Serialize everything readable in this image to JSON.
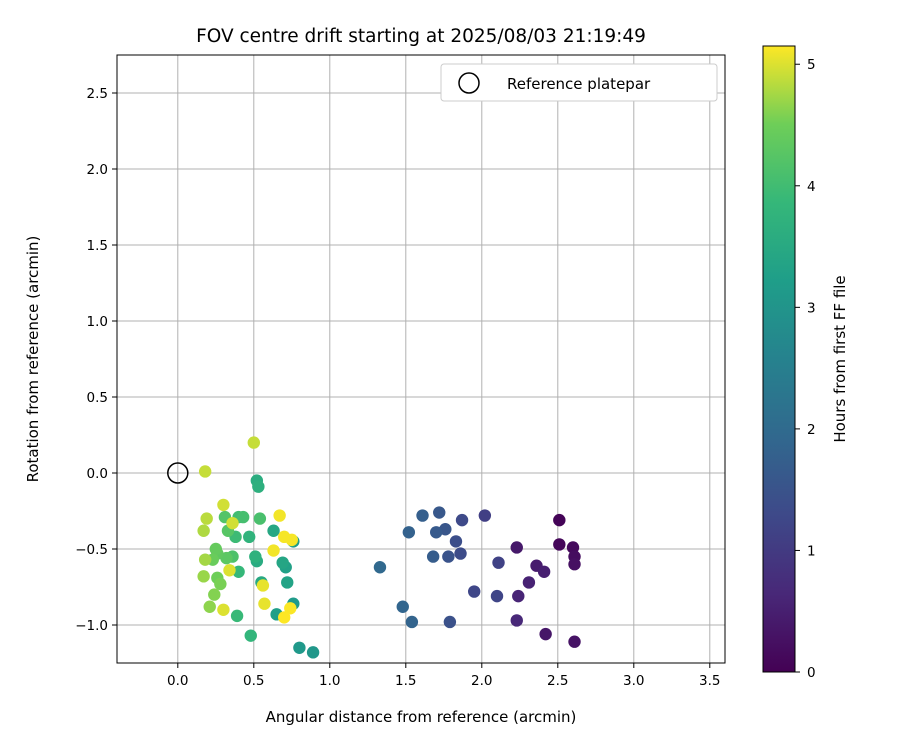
{
  "chart_data": {
    "type": "scatter",
    "title": "FOV centre drift starting at 2025/08/03 21:19:49",
    "xlabel": "Angular distance from reference (arcmin)",
    "ylabel": "Rotation from reference (arcmin)",
    "xlim": [
      -0.4,
      3.6
    ],
    "ylim": [
      -1.25,
      2.75
    ],
    "xticks": [
      0.0,
      0.5,
      1.0,
      1.5,
      2.0,
      2.5,
      3.0,
      3.5
    ],
    "yticks": [
      -1.0,
      -0.5,
      0.0,
      0.5,
      1.0,
      1.5,
      2.0,
      2.5
    ],
    "xtick_labels": [
      "0.0",
      "0.5",
      "1.0",
      "1.5",
      "2.0",
      "2.5",
      "3.0",
      "3.5"
    ],
    "ytick_labels": [
      "−1.0",
      "−0.5",
      "0.0",
      "0.5",
      "1.0",
      "1.5",
      "2.0",
      "2.5"
    ],
    "grid": true,
    "legend": {
      "position": "top-right",
      "entries": [
        "Reference platepar"
      ]
    },
    "reference_point": {
      "x": 0.0,
      "y": 0.0
    },
    "colorbar": {
      "label": "Hours from first FF file",
      "range": [
        0,
        5.15
      ],
      "ticks": [
        0,
        1,
        2,
        3,
        4,
        5
      ],
      "tick_labels": [
        "0",
        "1",
        "2",
        "3",
        "4",
        "5"
      ],
      "colormap": "viridis"
    },
    "points": [
      {
        "x": 2.51,
        "y": -0.31,
        "t": 0.05
      },
      {
        "x": 2.51,
        "y": -0.47,
        "t": 0.1
      },
      {
        "x": 2.6,
        "y": -0.49,
        "t": 0.15
      },
      {
        "x": 2.61,
        "y": -0.55,
        "t": 0.2
      },
      {
        "x": 2.61,
        "y": -0.6,
        "t": 0.25
      },
      {
        "x": 2.61,
        "y": -1.11,
        "t": 0.3
      },
      {
        "x": 2.42,
        "y": -1.06,
        "t": 0.35
      },
      {
        "x": 2.23,
        "y": -0.49,
        "t": 0.4
      },
      {
        "x": 2.36,
        "y": -0.61,
        "t": 0.45
      },
      {
        "x": 2.41,
        "y": -0.65,
        "t": 0.5
      },
      {
        "x": 2.31,
        "y": -0.72,
        "t": 0.55
      },
      {
        "x": 2.24,
        "y": -0.81,
        "t": 0.6
      },
      {
        "x": 2.23,
        "y": -0.97,
        "t": 0.65
      },
      {
        "x": 2.02,
        "y": -0.28,
        "t": 1.1
      },
      {
        "x": 2.11,
        "y": -0.59,
        "t": 1.15
      },
      {
        "x": 2.1,
        "y": -0.81,
        "t": 1.2
      },
      {
        "x": 1.95,
        "y": -0.78,
        "t": 1.25
      },
      {
        "x": 1.87,
        "y": -0.31,
        "t": 1.3
      },
      {
        "x": 1.86,
        "y": -0.53,
        "t": 1.35
      },
      {
        "x": 1.83,
        "y": -0.45,
        "t": 1.4
      },
      {
        "x": 1.79,
        "y": -0.98,
        "t": 1.45
      },
      {
        "x": 1.78,
        "y": -0.55,
        "t": 1.5
      },
      {
        "x": 1.76,
        "y": -0.37,
        "t": 1.55
      },
      {
        "x": 1.72,
        "y": -0.26,
        "t": 1.6
      },
      {
        "x": 1.7,
        "y": -0.39,
        "t": 1.65
      },
      {
        "x": 1.68,
        "y": -0.55,
        "t": 1.7
      },
      {
        "x": 1.61,
        "y": -0.28,
        "t": 1.75
      },
      {
        "x": 1.52,
        "y": -0.39,
        "t": 1.8
      },
      {
        "x": 1.54,
        "y": -0.98,
        "t": 1.85
      },
      {
        "x": 1.48,
        "y": -0.88,
        "t": 1.9
      },
      {
        "x": 1.33,
        "y": -0.62,
        "t": 1.95
      },
      {
        "x": 0.89,
        "y": -1.18,
        "t": 3.05
      },
      {
        "x": 0.8,
        "y": -1.15,
        "t": 3.1
      },
      {
        "x": 0.76,
        "y": -0.86,
        "t": 3.15
      },
      {
        "x": 0.76,
        "y": -0.45,
        "t": 3.2
      },
      {
        "x": 0.65,
        "y": -0.93,
        "t": 3.25
      },
      {
        "x": 0.71,
        "y": -0.62,
        "t": 3.3
      },
      {
        "x": 0.72,
        "y": -0.72,
        "t": 3.35
      },
      {
        "x": 0.69,
        "y": -0.59,
        "t": 3.4
      },
      {
        "x": 0.63,
        "y": -0.38,
        "t": 3.45
      },
      {
        "x": 0.55,
        "y": -0.72,
        "t": 3.5
      },
      {
        "x": 0.52,
        "y": -0.58,
        "t": 3.55
      },
      {
        "x": 0.52,
        "y": -0.05,
        "t": 3.6
      },
      {
        "x": 0.53,
        "y": -0.09,
        "t": 3.65
      },
      {
        "x": 0.51,
        "y": -0.55,
        "t": 3.7
      },
      {
        "x": 0.47,
        "y": -0.42,
        "t": 3.75
      },
      {
        "x": 0.48,
        "y": -1.07,
        "t": 3.8
      },
      {
        "x": 0.4,
        "y": -0.65,
        "t": 3.85
      },
      {
        "x": 0.39,
        "y": -0.94,
        "t": 3.9
      },
      {
        "x": 0.38,
        "y": -0.42,
        "t": 3.95
      },
      {
        "x": 0.4,
        "y": -0.29,
        "t": 4.0
      },
      {
        "x": 0.43,
        "y": -0.29,
        "t": 4.05
      },
      {
        "x": 0.54,
        "y": -0.3,
        "t": 4.1
      },
      {
        "x": 0.36,
        "y": -0.55,
        "t": 4.15
      },
      {
        "x": 0.31,
        "y": -0.29,
        "t": 4.2
      },
      {
        "x": 0.33,
        "y": -0.38,
        "t": 4.25
      },
      {
        "x": 0.32,
        "y": -0.56,
        "t": 4.3
      },
      {
        "x": 0.26,
        "y": -0.53,
        "t": 4.35
      },
      {
        "x": 0.25,
        "y": -0.5,
        "t": 4.4
      },
      {
        "x": 0.23,
        "y": -0.57,
        "t": 4.45
      },
      {
        "x": 0.26,
        "y": -0.69,
        "t": 4.5
      },
      {
        "x": 0.28,
        "y": -0.73,
        "t": 4.55
      },
      {
        "x": 0.24,
        "y": -0.8,
        "t": 4.6
      },
      {
        "x": 0.21,
        "y": -0.88,
        "t": 4.65
      },
      {
        "x": 0.17,
        "y": -0.68,
        "t": 4.7
      },
      {
        "x": 0.18,
        "y": -0.57,
        "t": 4.75
      },
      {
        "x": 0.17,
        "y": -0.38,
        "t": 4.8
      },
      {
        "x": 0.19,
        "y": -0.3,
        "t": 4.85
      },
      {
        "x": 0.18,
        "y": 0.01,
        "t": 4.9
      },
      {
        "x": 0.5,
        "y": 0.2,
        "t": 4.9
      },
      {
        "x": 0.36,
        "y": -0.33,
        "t": 4.95
      },
      {
        "x": 0.3,
        "y": -0.21,
        "t": 4.95
      },
      {
        "x": 0.34,
        "y": -0.64,
        "t": 5.0
      },
      {
        "x": 0.3,
        "y": -0.9,
        "t": 5.0
      },
      {
        "x": 0.56,
        "y": -0.74,
        "t": 5.05
      },
      {
        "x": 0.57,
        "y": -0.86,
        "t": 5.05
      },
      {
        "x": 0.63,
        "y": -0.51,
        "t": 5.1
      },
      {
        "x": 0.67,
        "y": -0.28,
        "t": 5.1
      },
      {
        "x": 0.7,
        "y": -0.42,
        "t": 5.12
      },
      {
        "x": 0.75,
        "y": -0.44,
        "t": 5.12
      },
      {
        "x": 0.74,
        "y": -0.89,
        "t": 5.14
      },
      {
        "x": 0.7,
        "y": -0.95,
        "t": 5.15
      }
    ]
  }
}
